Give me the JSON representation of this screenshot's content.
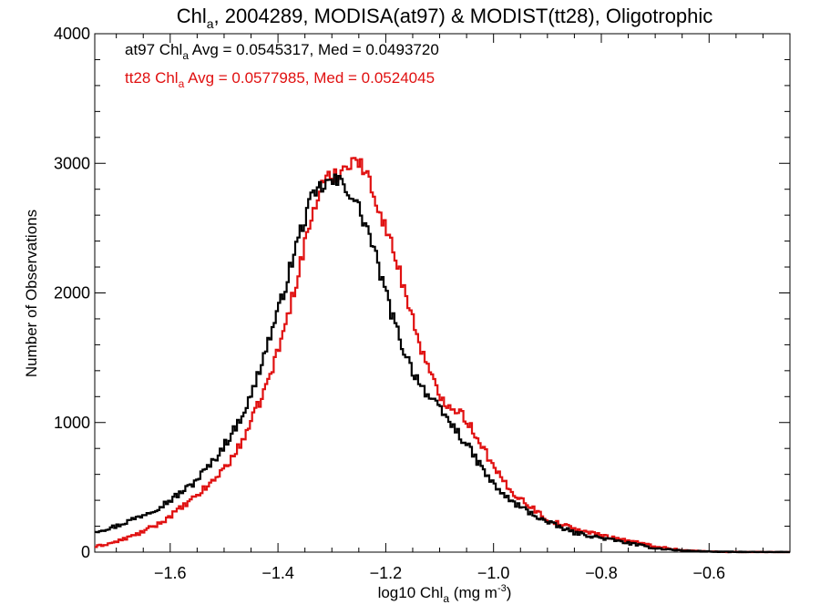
{
  "chart_data": {
    "type": "histogram-step",
    "title": {
      "prefix": "Chl",
      "sub": "a",
      "suffix": ", 2004289, MODISA(at97) & MODIST(tt28), Oligotrophic"
    },
    "xlabel": {
      "prefix": "log10 Chl",
      "sub": "a",
      "mid": " (mg m",
      "sup": "-3",
      "end": ")"
    },
    "ylabel": "Number of Observations",
    "xlim": [
      -1.74,
      -0.45
    ],
    "ylim": [
      0,
      4000
    ],
    "xticks": [
      -1.6,
      -1.4,
      -1.2,
      -1.0,
      -0.8,
      -0.6
    ],
    "xtick_labels": [
      "−1.6",
      "−1.4",
      "−1.2",
      "−1.0",
      "−0.8",
      "−0.6"
    ],
    "yticks": [
      0,
      1000,
      2000,
      3000,
      4000
    ],
    "ytick_labels": [
      "0",
      "1000",
      "2000",
      "3000",
      "4000"
    ],
    "grid": false,
    "series": [
      {
        "name": "at97",
        "color": "#000000",
        "label": {
          "prefix": "at97 Chl",
          "sub": "a",
          "suffix": " Avg = 0.0545317, Med = 0.0493720"
        },
        "anchors": [
          [
            -1.74,
            160
          ],
          [
            -1.7,
            200
          ],
          [
            -1.66,
            270
          ],
          [
            -1.62,
            350
          ],
          [
            -1.6,
            400
          ],
          [
            -1.56,
            520
          ],
          [
            -1.52,
            700
          ],
          [
            -1.48,
            950
          ],
          [
            -1.45,
            1200
          ],
          [
            -1.42,
            1600
          ],
          [
            -1.4,
            1850
          ],
          [
            -1.38,
            2150
          ],
          [
            -1.36,
            2450
          ],
          [
            -1.34,
            2700
          ],
          [
            -1.32,
            2820
          ],
          [
            -1.3,
            2860
          ],
          [
            -1.28,
            2850
          ],
          [
            -1.27,
            2800
          ],
          [
            -1.25,
            2650
          ],
          [
            -1.23,
            2450
          ],
          [
            -1.21,
            2150
          ],
          [
            -1.19,
            1850
          ],
          [
            -1.17,
            1600
          ],
          [
            -1.15,
            1400
          ],
          [
            -1.12,
            1200
          ],
          [
            -1.08,
            1000
          ],
          [
            -1.05,
            830
          ],
          [
            -1.02,
            640
          ],
          [
            -1.0,
            520
          ],
          [
            -0.97,
            400
          ],
          [
            -0.93,
            300
          ],
          [
            -0.9,
            230
          ],
          [
            -0.85,
            150
          ],
          [
            -0.8,
            110
          ],
          [
            -0.75,
            70
          ],
          [
            -0.7,
            30
          ],
          [
            -0.65,
            12
          ],
          [
            -0.6,
            4
          ],
          [
            -0.55,
            1
          ],
          [
            -0.5,
            0
          ],
          [
            -0.45,
            0
          ]
        ]
      },
      {
        "name": "tt28",
        "color": "#e01010",
        "label": {
          "prefix": "tt28 Chl",
          "sub": "a",
          "suffix": " Avg = 0.0577985, Med = 0.0524045"
        },
        "anchors": [
          [
            -1.74,
            40
          ],
          [
            -1.7,
            80
          ],
          [
            -1.66,
            140
          ],
          [
            -1.62,
            220
          ],
          [
            -1.6,
            280
          ],
          [
            -1.56,
            400
          ],
          [
            -1.52,
            550
          ],
          [
            -1.48,
            750
          ],
          [
            -1.45,
            1000
          ],
          [
            -1.42,
            1300
          ],
          [
            -1.4,
            1550
          ],
          [
            -1.38,
            1850
          ],
          [
            -1.36,
            2200
          ],
          [
            -1.34,
            2550
          ],
          [
            -1.32,
            2820
          ],
          [
            -1.3,
            2900
          ],
          [
            -1.28,
            2950
          ],
          [
            -1.26,
            3050
          ],
          [
            -1.24,
            2950
          ],
          [
            -1.22,
            2750
          ],
          [
            -1.2,
            2500
          ],
          [
            -1.18,
            2250
          ],
          [
            -1.16,
            1950
          ],
          [
            -1.14,
            1650
          ],
          [
            -1.12,
            1400
          ],
          [
            -1.1,
            1200
          ],
          [
            -1.08,
            1130
          ],
          [
            -1.06,
            1080
          ],
          [
            -1.04,
            950
          ],
          [
            -1.02,
            820
          ],
          [
            -1.0,
            650
          ],
          [
            -0.97,
            480
          ],
          [
            -0.93,
            350
          ],
          [
            -0.9,
            250
          ],
          [
            -0.85,
            180
          ],
          [
            -0.8,
            130
          ],
          [
            -0.75,
            90
          ],
          [
            -0.7,
            45
          ],
          [
            -0.65,
            15
          ],
          [
            -0.6,
            5
          ],
          [
            -0.55,
            1
          ],
          [
            -0.5,
            0
          ],
          [
            -0.45,
            0
          ]
        ]
      }
    ]
  }
}
